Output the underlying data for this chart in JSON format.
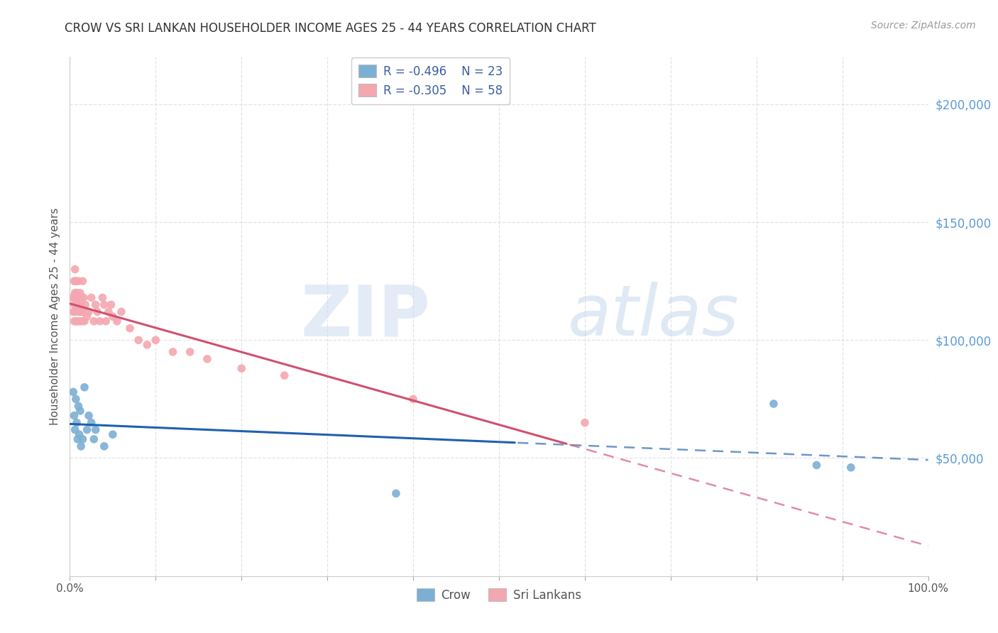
{
  "title": "CROW VS SRI LANKAN HOUSEHOLDER INCOME AGES 25 - 44 YEARS CORRELATION CHART",
  "source": "Source: ZipAtlas.com",
  "ylabel": "Householder Income Ages 25 - 44 years",
  "y_tick_labels": [
    "$50,000",
    "$100,000",
    "$150,000",
    "$200,000"
  ],
  "y_tick_values": [
    50000,
    100000,
    150000,
    200000
  ],
  "ylim": [
    0,
    220000
  ],
  "xlim": [
    0.0,
    1.0
  ],
  "crow_color": "#7bafd4",
  "sri_lankan_color": "#f4a7b0",
  "crow_line_color": "#2060b0",
  "sri_lankan_line_color": "#d05070",
  "bg_color": "#ffffff",
  "grid_color": "#e0e0e0",
  "title_color": "#333333",
  "right_tick_color": "#5b9bd5",
  "source_color": "#999999",
  "crow_R": -0.496,
  "crow_N": 23,
  "sri_R": -0.305,
  "sri_N": 58,
  "crow_x": [
    0.004,
    0.005,
    0.006,
    0.007,
    0.008,
    0.009,
    0.01,
    0.011,
    0.012,
    0.013,
    0.015,
    0.017,
    0.02,
    0.022,
    0.025,
    0.028,
    0.03,
    0.04,
    0.05,
    0.38,
    0.82,
    0.87,
    0.91
  ],
  "crow_y": [
    78000,
    68000,
    62000,
    75000,
    65000,
    58000,
    72000,
    60000,
    70000,
    55000,
    58000,
    80000,
    62000,
    68000,
    65000,
    58000,
    62000,
    55000,
    60000,
    35000,
    73000,
    47000,
    46000
  ],
  "sri_lankan_x": [
    0.003,
    0.004,
    0.005,
    0.005,
    0.005,
    0.006,
    0.006,
    0.006,
    0.007,
    0.007,
    0.007,
    0.008,
    0.008,
    0.008,
    0.009,
    0.009,
    0.01,
    0.01,
    0.01,
    0.011,
    0.011,
    0.012,
    0.012,
    0.013,
    0.013,
    0.014,
    0.014,
    0.015,
    0.015,
    0.016,
    0.017,
    0.018,
    0.02,
    0.022,
    0.025,
    0.028,
    0.03,
    0.032,
    0.035,
    0.038,
    0.04,
    0.042,
    0.045,
    0.048,
    0.05,
    0.055,
    0.06,
    0.07,
    0.08,
    0.09,
    0.1,
    0.12,
    0.14,
    0.16,
    0.2,
    0.25,
    0.4,
    0.6
  ],
  "sri_lankan_y": [
    118000,
    112000,
    125000,
    115000,
    108000,
    120000,
    130000,
    112000,
    118000,
    108000,
    125000,
    115000,
    120000,
    108000,
    115000,
    118000,
    112000,
    125000,
    108000,
    118000,
    112000,
    120000,
    108000,
    115000,
    118000,
    112000,
    108000,
    125000,
    112000,
    118000,
    108000,
    115000,
    110000,
    112000,
    118000,
    108000,
    115000,
    112000,
    108000,
    118000,
    115000,
    108000,
    112000,
    115000,
    110000,
    108000,
    112000,
    105000,
    100000,
    98000,
    100000,
    95000,
    95000,
    92000,
    88000,
    85000,
    75000,
    65000
  ]
}
